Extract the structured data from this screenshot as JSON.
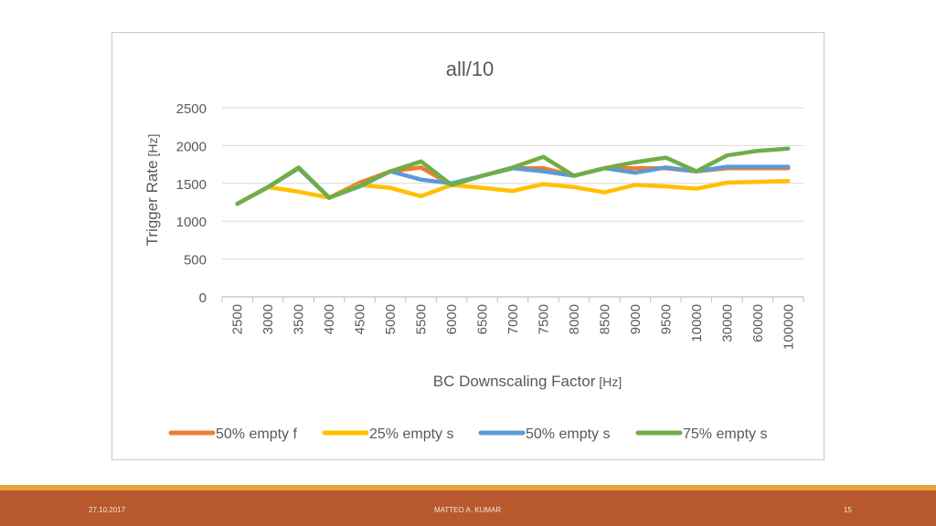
{
  "footer": {
    "date": "27.10.2017",
    "author": "MATTEO A. KUMAR",
    "page": "15"
  },
  "chart_data": {
    "type": "line",
    "title": "all/10",
    "ylabel": "Trigger Rate",
    "ylabel_unit": "[Hz]",
    "xlabel": "BC Downscaling Factor",
    "xlabel_unit": "[Hz]",
    "ylim": [
      0,
      2500
    ],
    "yticks": [
      "0",
      "500",
      "1000",
      "1500",
      "2000",
      "2500"
    ],
    "grid": true,
    "legend_position": "bottom",
    "categories": [
      "2500",
      "3000",
      "3500",
      "4000",
      "4500",
      "5000",
      "5500",
      "6000",
      "6500",
      "7000",
      "7500",
      "8000",
      "8500",
      "9000",
      "9500",
      "10000",
      "30000",
      "60000",
      "100000"
    ],
    "series": [
      {
        "name": "50% empty f",
        "color": "#ed7d31",
        "values": [
          1230,
          1450,
          1700,
          1310,
          1510,
          1660,
          1710,
          1480,
          1600,
          1700,
          1700,
          1600,
          1700,
          1700,
          1700,
          1660,
          1700,
          1700,
          1700
        ]
      },
      {
        "name": "25% empty s",
        "color": "#ffc000",
        "values": [
          1230,
          1450,
          1390,
          1310,
          1480,
          1440,
          1330,
          1480,
          1440,
          1400,
          1490,
          1450,
          1380,
          1480,
          1460,
          1430,
          1510,
          1520,
          1530
        ]
      },
      {
        "name": "50% empty s",
        "color": "#5b9bd5",
        "values": [
          1230,
          1450,
          1700,
          1310,
          1460,
          1660,
          1550,
          1500,
          1600,
          1700,
          1660,
          1600,
          1700,
          1640,
          1710,
          1660,
          1720,
          1720,
          1720
        ]
      },
      {
        "name": "75% empty s",
        "color": "#70ad47",
        "values": [
          1230,
          1450,
          1710,
          1310,
          1470,
          1660,
          1790,
          1480,
          1600,
          1710,
          1850,
          1600,
          1700,
          1780,
          1840,
          1660,
          1870,
          1930,
          1960
        ]
      }
    ]
  }
}
